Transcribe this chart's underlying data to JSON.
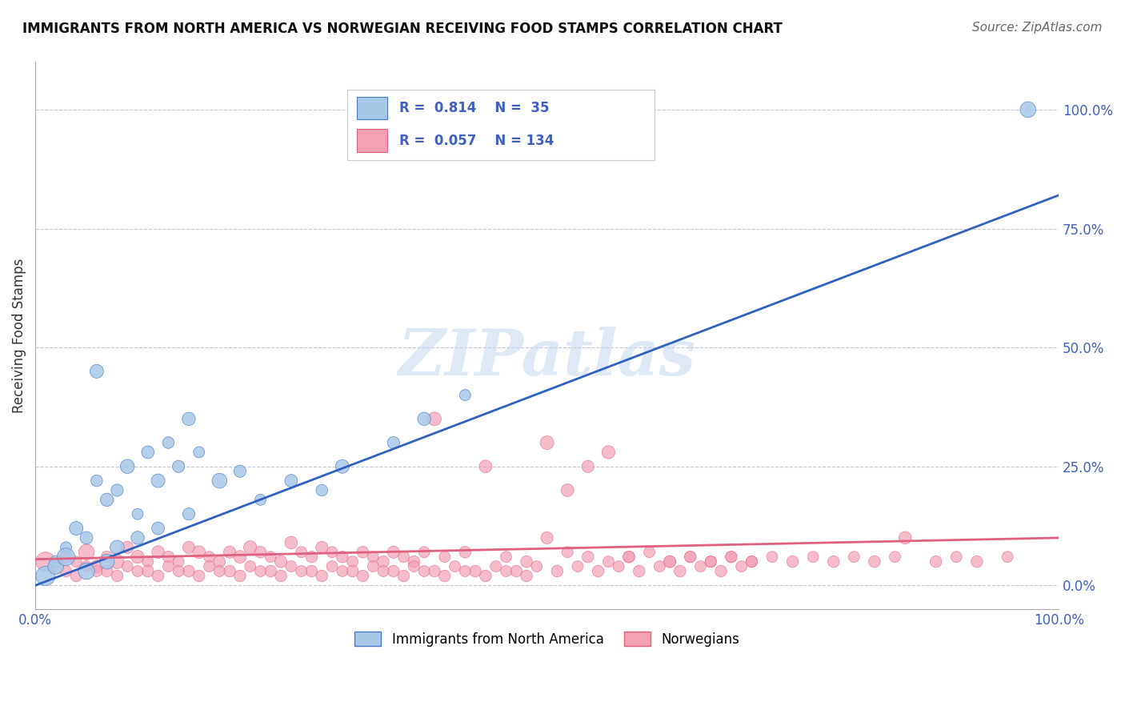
{
  "title": "IMMIGRANTS FROM NORTH AMERICA VS NORWEGIAN RECEIVING FOOD STAMPS CORRELATION CHART",
  "source": "Source: ZipAtlas.com",
  "ylabel": "Receiving Food Stamps",
  "xlim": [
    0,
    1
  ],
  "ylim": [
    -0.05,
    1.1
  ],
  "xtick_labels": [
    "0.0%",
    "100.0%"
  ],
  "ytick_positions": [
    0,
    0.25,
    0.5,
    0.75,
    1.0
  ],
  "ytick_labels": [
    "0.0%",
    "25.0%",
    "50.0%",
    "75.0%",
    "100.0%"
  ],
  "blue_R": 0.814,
  "blue_N": 35,
  "pink_R": 0.057,
  "pink_N": 134,
  "blue_color": "#a8c8e8",
  "pink_color": "#f4a0b5",
  "blue_edge_color": "#4878c8",
  "pink_edge_color": "#e06080",
  "blue_line_color": "#3060c0",
  "pink_line_color": "#e06080",
  "legend_label_blue": "Immigrants from North America",
  "legend_label_pink": "Norwegians",
  "watermark_text": "ZIPatlas",
  "background_color": "#ffffff",
  "grid_color": "#c0c8d8",
  "title_color": "#101010",
  "axis_label_color": "#4060c0",
  "blue_scatter_x": [
    0.02,
    0.03,
    0.04,
    0.05,
    0.06,
    0.07,
    0.08,
    0.09,
    0.1,
    0.11,
    0.12,
    0.13,
    0.14,
    0.15,
    0.16,
    0.18,
    0.2,
    0.22,
    0.25,
    0.28,
    0.3,
    0.35,
    0.38,
    0.42,
    0.01,
    0.02,
    0.03,
    0.05,
    0.07,
    0.08,
    0.1,
    0.12,
    0.15,
    0.97,
    0.06
  ],
  "blue_scatter_y": [
    0.05,
    0.08,
    0.12,
    0.1,
    0.22,
    0.18,
    0.2,
    0.25,
    0.15,
    0.28,
    0.22,
    0.3,
    0.25,
    0.35,
    0.28,
    0.22,
    0.24,
    0.18,
    0.22,
    0.2,
    0.25,
    0.3,
    0.35,
    0.4,
    0.02,
    0.04,
    0.06,
    0.03,
    0.05,
    0.08,
    0.1,
    0.12,
    0.15,
    1.0,
    0.45
  ],
  "blue_scatter_sizes": [
    120,
    100,
    150,
    130,
    110,
    140,
    120,
    160,
    100,
    130,
    150,
    110,
    120,
    140,
    100,
    180,
    120,
    100,
    130,
    110,
    150,
    120,
    140,
    100,
    300,
    200,
    250,
    220,
    180,
    160,
    140,
    130,
    120,
    200,
    150
  ],
  "pink_scatter_x": [
    0.01,
    0.02,
    0.03,
    0.04,
    0.05,
    0.06,
    0.07,
    0.08,
    0.09,
    0.1,
    0.11,
    0.12,
    0.13,
    0.14,
    0.15,
    0.16,
    0.17,
    0.18,
    0.19,
    0.2,
    0.21,
    0.22,
    0.23,
    0.24,
    0.25,
    0.26,
    0.27,
    0.28,
    0.29,
    0.3,
    0.31,
    0.32,
    0.33,
    0.34,
    0.35,
    0.36,
    0.37,
    0.38,
    0.39,
    0.4,
    0.42,
    0.44,
    0.46,
    0.48,
    0.5,
    0.52,
    0.54,
    0.56,
    0.58,
    0.6,
    0.62,
    0.64,
    0.66,
    0.68,
    0.7,
    0.72,
    0.74,
    0.76,
    0.78,
    0.8,
    0.82,
    0.84,
    0.88,
    0.9,
    0.92,
    0.95,
    0.03,
    0.05,
    0.07,
    0.09,
    0.11,
    0.13,
    0.15,
    0.17,
    0.19,
    0.21,
    0.23,
    0.25,
    0.27,
    0.29,
    0.31,
    0.33,
    0.35,
    0.37,
    0.39,
    0.41,
    0.43,
    0.45,
    0.47,
    0.49,
    0.51,
    0.53,
    0.55,
    0.57,
    0.59,
    0.61,
    0.63,
    0.65,
    0.67,
    0.69,
    0.04,
    0.06,
    0.08,
    0.1,
    0.12,
    0.14,
    0.16,
    0.18,
    0.2,
    0.22,
    0.24,
    0.26,
    0.28,
    0.3,
    0.32,
    0.34,
    0.36,
    0.38,
    0.4,
    0.42,
    0.44,
    0.46,
    0.48,
    0.5,
    0.52,
    0.54,
    0.56,
    0.58,
    0.85,
    0.62,
    0.64,
    0.66,
    0.68,
    0.7
  ],
  "pink_scatter_y": [
    0.05,
    0.04,
    0.06,
    0.05,
    0.07,
    0.04,
    0.06,
    0.05,
    0.08,
    0.06,
    0.05,
    0.07,
    0.06,
    0.05,
    0.08,
    0.07,
    0.06,
    0.05,
    0.07,
    0.06,
    0.08,
    0.07,
    0.06,
    0.05,
    0.09,
    0.07,
    0.06,
    0.08,
    0.07,
    0.06,
    0.05,
    0.07,
    0.06,
    0.05,
    0.07,
    0.06,
    0.05,
    0.07,
    0.35,
    0.06,
    0.07,
    0.25,
    0.06,
    0.05,
    0.1,
    0.07,
    0.06,
    0.05,
    0.06,
    0.07,
    0.05,
    0.06,
    0.05,
    0.06,
    0.05,
    0.06,
    0.05,
    0.06,
    0.05,
    0.06,
    0.05,
    0.06,
    0.05,
    0.06,
    0.05,
    0.06,
    0.03,
    0.04,
    0.03,
    0.04,
    0.03,
    0.04,
    0.03,
    0.04,
    0.03,
    0.04,
    0.03,
    0.04,
    0.03,
    0.04,
    0.03,
    0.04,
    0.03,
    0.04,
    0.03,
    0.04,
    0.03,
    0.04,
    0.03,
    0.04,
    0.03,
    0.04,
    0.03,
    0.04,
    0.03,
    0.04,
    0.03,
    0.04,
    0.03,
    0.04,
    0.02,
    0.03,
    0.02,
    0.03,
    0.02,
    0.03,
    0.02,
    0.03,
    0.02,
    0.03,
    0.02,
    0.03,
    0.02,
    0.03,
    0.02,
    0.03,
    0.02,
    0.03,
    0.02,
    0.03,
    0.02,
    0.03,
    0.02,
    0.3,
    0.2,
    0.25,
    0.28,
    0.06,
    0.1,
    0.05,
    0.06,
    0.05,
    0.06,
    0.05
  ],
  "pink_scatter_sizes": [
    300,
    150,
    120,
    100,
    200,
    130,
    110,
    160,
    120,
    140,
    100,
    130,
    110,
    100,
    120,
    130,
    100,
    110,
    120,
    130,
    140,
    110,
    100,
    120,
    130,
    100,
    110,
    120,
    100,
    110,
    100,
    110,
    100,
    110,
    120,
    100,
    110,
    100,
    150,
    100,
    110,
    130,
    100,
    110,
    120,
    100,
    110,
    100,
    110,
    100,
    110,
    100,
    110,
    100,
    110,
    100,
    110,
    100,
    110,
    100,
    110,
    100,
    110,
    100,
    110,
    100,
    110,
    100,
    110,
    100,
    110,
    100,
    110,
    100,
    110,
    100,
    110,
    100,
    110,
    100,
    110,
    100,
    110,
    100,
    110,
    100,
    110,
    100,
    110,
    100,
    110,
    100,
    110,
    100,
    110,
    100,
    110,
    100,
    110,
    100,
    110,
    100,
    110,
    100,
    110,
    100,
    110,
    100,
    110,
    100,
    110,
    100,
    110,
    100,
    110,
    100,
    110,
    100,
    110,
    100,
    110,
    100,
    110,
    150,
    130,
    120,
    140,
    110,
    130,
    120,
    110,
    100,
    110,
    100
  ]
}
